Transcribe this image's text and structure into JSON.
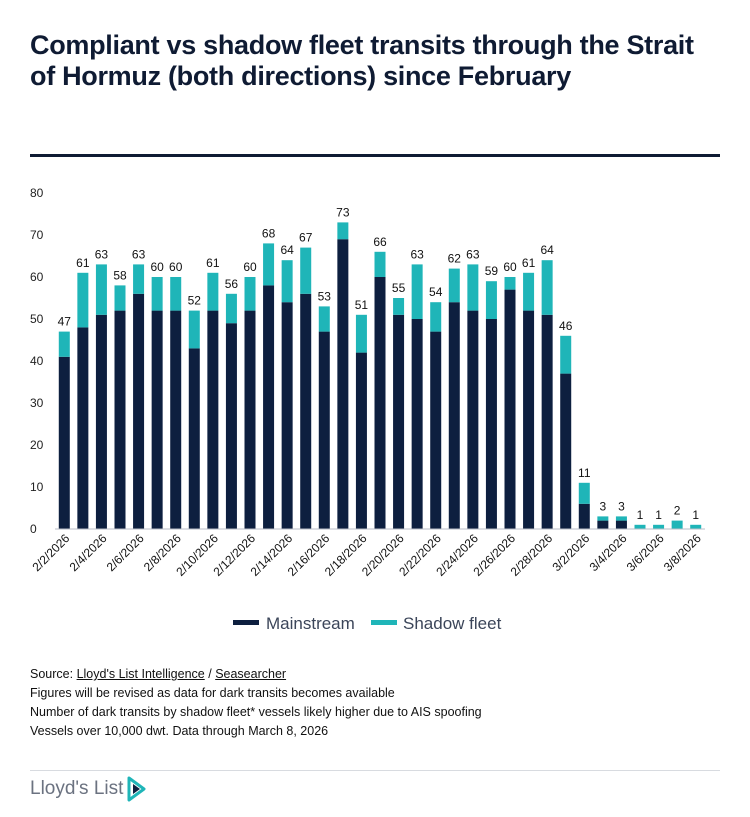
{
  "title": "Compliant vs shadow fleet transits through the Strait of Hormuz (both directions) since February",
  "colors": {
    "mainstream": "#0d1f3f",
    "shadow": "#1fb5b8",
    "axis": "#b9bec7",
    "text": "#0f1b33"
  },
  "chart_data": {
    "type": "bar",
    "stacked": true,
    "title": "Compliant vs shadow fleet transits through the Strait of Hormuz (both directions) since February",
    "ylim": [
      0,
      80
    ],
    "yticks": [
      0,
      10,
      20,
      30,
      40,
      50,
      60,
      70,
      80
    ],
    "xtick_labels": [
      "2/2/2026",
      "2/4/2026",
      "2/6/2026",
      "2/8/2026",
      "2/10/2026",
      "2/12/2026",
      "2/14/2026",
      "2/16/2026",
      "2/18/2026",
      "2/20/2026",
      "2/22/2026",
      "2/24/2026",
      "2/26/2026",
      "2/28/2026",
      "3/2/2026",
      "3/4/2026",
      "3/6/2026",
      "3/8/2026"
    ],
    "categories": [
      "2/2/2026",
      "2/3/2026",
      "2/4/2026",
      "2/5/2026",
      "2/6/2026",
      "2/7/2026",
      "2/8/2026",
      "2/9/2026",
      "2/10/2026",
      "2/11/2026",
      "2/12/2026",
      "2/13/2026",
      "2/14/2026",
      "2/15/2026",
      "2/16/2026",
      "2/17/2026",
      "2/18/2026",
      "2/19/2026",
      "2/20/2026",
      "2/21/2026",
      "2/22/2026",
      "2/23/2026",
      "2/24/2026",
      "2/25/2026",
      "2/26/2026",
      "2/27/2026",
      "2/28/2026",
      "3/1/2026",
      "3/2/2026",
      "3/3/2026",
      "3/4/2026",
      "3/5/2026",
      "3/6/2026",
      "3/7/2026",
      "3/8/2026"
    ],
    "series": [
      {
        "name": "Mainstream",
        "values": [
          41,
          48,
          51,
          52,
          56,
          52,
          52,
          43,
          52,
          49,
          52,
          58,
          54,
          56,
          47,
          69,
          42,
          60,
          51,
          50,
          47,
          54,
          52,
          50,
          57,
          52,
          51,
          37,
          6,
          2,
          2,
          0,
          0,
          0,
          0
        ]
      },
      {
        "name": "Shadow fleet",
        "values": [
          6,
          13,
          12,
          6,
          7,
          8,
          8,
          9,
          9,
          7,
          8,
          10,
          10,
          11,
          6,
          4,
          9,
          6,
          4,
          13,
          7,
          8,
          11,
          9,
          3,
          9,
          13,
          9,
          5,
          1,
          1,
          1,
          1,
          2,
          1
        ]
      }
    ],
    "totals": [
      47,
      61,
      63,
      58,
      63,
      60,
      60,
      52,
      61,
      56,
      60,
      68,
      64,
      67,
      53,
      73,
      51,
      66,
      55,
      63,
      54,
      62,
      63,
      59,
      60,
      61,
      64,
      46,
      11,
      3,
      3,
      1,
      1,
      2,
      1
    ],
    "legend": [
      "Mainstream",
      "Shadow fleet"
    ],
    "legend_position": "bottom-center"
  },
  "footer": {
    "source_prefix": "Source:",
    "source_link_1": "Lloyd's List Intelligence",
    "source_sep": "/",
    "source_link_2": "Seasearcher",
    "note_1": "Figures will be revised as data for dark transits becomes available",
    "note_2": "Number of dark transits by shadow fleet* vessels likely higher due to AIS spoofing",
    "note_3": "Vessels over 10,000 dwt. Data through March 8, 2026"
  },
  "logo": {
    "text": "Lloyd's List",
    "icon": "lloyds-list-arrow-icon"
  }
}
